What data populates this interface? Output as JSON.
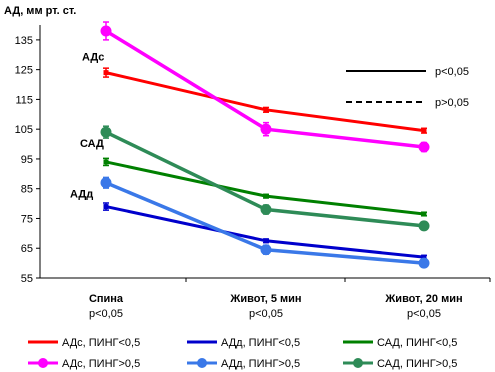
{
  "chart_data": {
    "type": "line",
    "ylabel": "АД, мм рт. ст.",
    "ylim": [
      55,
      140
    ],
    "yticks": [
      55,
      65,
      75,
      85,
      95,
      105,
      115,
      125,
      135
    ],
    "grid": false,
    "legend_position": "bottom",
    "categories": [
      {
        "name": "Спина",
        "sub": "p<0,05"
      },
      {
        "name": "Живот, 5 мин",
        "sub": "p<0,05"
      },
      {
        "name": "Живот, 20 мин",
        "sub": "p<0,05"
      }
    ],
    "series": [
      {
        "name": "АДс, ПИНГ<0,5",
        "values": [
          124,
          111.5,
          104.5
        ],
        "errors": [
          1.5,
          0.8,
          0.8
        ],
        "color": "#ff0000",
        "marker": "none",
        "thick": false
      },
      {
        "name": "АДд, ПИНГ<0,5",
        "values": [
          79,
          67.5,
          62
        ],
        "errors": [
          1.2,
          0.6,
          0.6
        ],
        "color": "#0000cc",
        "marker": "none",
        "thick": false
      },
      {
        "name": "САД, ПИНГ<0,5",
        "values": [
          94,
          82.5,
          76.5
        ],
        "errors": [
          1.2,
          0.6,
          0.6
        ],
        "color": "#008000",
        "marker": "none",
        "thick": false
      },
      {
        "name": "АДс, ПИНГ>0,5",
        "values": [
          138,
          105,
          99
        ],
        "errors": [
          3,
          2.2,
          1.5
        ],
        "color": "#ff00ff",
        "marker": "circle",
        "thick": true
      },
      {
        "name": "АДд, ПИНГ>0,5",
        "values": [
          87,
          64.5,
          60
        ],
        "errors": [
          1.8,
          1.5,
          1.2
        ],
        "color": "#3a78e8",
        "marker": "circle",
        "thick": true
      },
      {
        "name": "САД, ПИНГ>0,5",
        "values": [
          104,
          78,
          72.5
        ],
        "errors": [
          2,
          1.5,
          1.2
        ],
        "color": "#2e8b57",
        "marker": "circle",
        "thick": true
      }
    ],
    "annotations": [
      {
        "text": "АДс",
        "x": 0,
        "y": 128
      },
      {
        "text": "САД",
        "x": 0,
        "y": 99
      },
      {
        "text": "АДд",
        "x": 0,
        "y": 82
      }
    ],
    "significance_legend": [
      {
        "text": "p<0,05",
        "style": "solid"
      },
      {
        "text": "p>0,05",
        "style": "dashed"
      }
    ]
  }
}
